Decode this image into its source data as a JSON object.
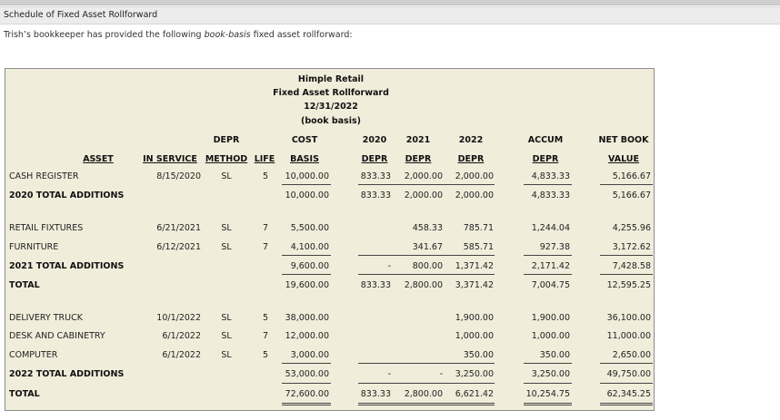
{
  "header": {
    "title": "Schedule of Fixed Asset Rollforward"
  },
  "intro": {
    "before": "Trish’s bookkeeper has provided the following ",
    "emphasis": "book-basis",
    "after": " fixed asset rollforward:"
  },
  "schedule": {
    "title": {
      "company": "Himple Retail",
      "report": "Fixed Asset Rollforward",
      "date": "12/31/2022",
      "basis": "(book basis)"
    },
    "headers": {
      "depr_top": "DEPR",
      "cost_top": "COST",
      "y2020_top": "2020",
      "y2021_top": "2021",
      "y2022_top": "2022",
      "accum_top": "ACCUM",
      "nbv_top": "NET BOOK",
      "asset": "ASSET",
      "in_service": "IN SERVICE",
      "method": "METHOD",
      "life": "LIFE",
      "basis": "BASIS",
      "depr2020": "DEPR",
      "depr2021": "DEPR",
      "depr2022": "DEPR",
      "accum": "DEPR",
      "nbv": "VALUE"
    },
    "rows": [
      {
        "asset": "CASH REGISTER",
        "in_service": "8/15/2020",
        "method": "SL",
        "life": "5",
        "basis": "10,000.00",
        "d2020": "833.33",
        "d2021": "2,000.00",
        "d2022": "2,000.00",
        "accum": "4,833.33",
        "nbv": "5,166.67"
      },
      {
        "asset": "2020 TOTAL ADDITIONS",
        "in_service": "",
        "method": "",
        "life": "",
        "basis": "10,000.00",
        "d2020": "833.33",
        "d2021": "2,000.00",
        "d2022": "2,000.00",
        "accum": "4,833.33",
        "nbv": "5,166.67"
      },
      {
        "asset": "RETAIL FIXTURES",
        "in_service": "6/21/2021",
        "method": "SL",
        "life": "7",
        "basis": "5,500.00",
        "d2020": "",
        "d2021": "458.33",
        "d2022": "785.71",
        "accum": "1,244.04",
        "nbv": "4,255.96"
      },
      {
        "asset": "FURNITURE",
        "in_service": "6/12/2021",
        "method": "SL",
        "life": "7",
        "basis": "4,100.00",
        "d2020": "",
        "d2021": "341.67",
        "d2022": "585.71",
        "accum": "927.38",
        "nbv": "3,172.62"
      },
      {
        "asset": "2021 TOTAL ADDITIONS",
        "in_service": "",
        "method": "",
        "life": "",
        "basis": "9,600.00",
        "d2020": "-",
        "d2021": "800.00",
        "d2022": "1,371.42",
        "accum": "2,171.42",
        "nbv": "7,428.58"
      },
      {
        "asset": "TOTAL",
        "in_service": "",
        "method": "",
        "life": "",
        "basis": "19,600.00",
        "d2020": "833.33",
        "d2021": "2,800.00",
        "d2022": "3,371.42",
        "accum": "7,004.75",
        "nbv": "12,595.25"
      },
      {
        "asset": "DELIVERY TRUCK",
        "in_service": "10/1/2022",
        "method": "SL",
        "life": "5",
        "basis": "38,000.00",
        "d2020": "",
        "d2021": "",
        "d2022": "1,900.00",
        "accum": "1,900.00",
        "nbv": "36,100.00"
      },
      {
        "asset": "DESK AND CABINETRY",
        "in_service": "6/1/2022",
        "method": "SL",
        "life": "7",
        "basis": "12,000.00",
        "d2020": "",
        "d2021": "",
        "d2022": "1,000.00",
        "accum": "1,000.00",
        "nbv": "11,000.00"
      },
      {
        "asset": "COMPUTER",
        "in_service": "6/1/2022",
        "method": "SL",
        "life": "5",
        "basis": "3,000.00",
        "d2020": "",
        "d2021": "",
        "d2022": "350.00",
        "accum": "350.00",
        "nbv": "2,650.00"
      },
      {
        "asset": "2022 TOTAL ADDITIONS",
        "in_service": "",
        "method": "",
        "life": "",
        "basis": "53,000.00",
        "d2020": "-",
        "d2021": "-",
        "d2022": "3,250.00",
        "accum": "3,250.00",
        "nbv": "49,750.00"
      },
      {
        "asset": "TOTAL",
        "in_service": "",
        "method": "",
        "life": "",
        "basis": "72,600.00",
        "d2020": "833.33",
        "d2021": "2,800.00",
        "d2022": "6,621.42",
        "accum": "10,254.75",
        "nbv": "62,345.25"
      }
    ]
  }
}
